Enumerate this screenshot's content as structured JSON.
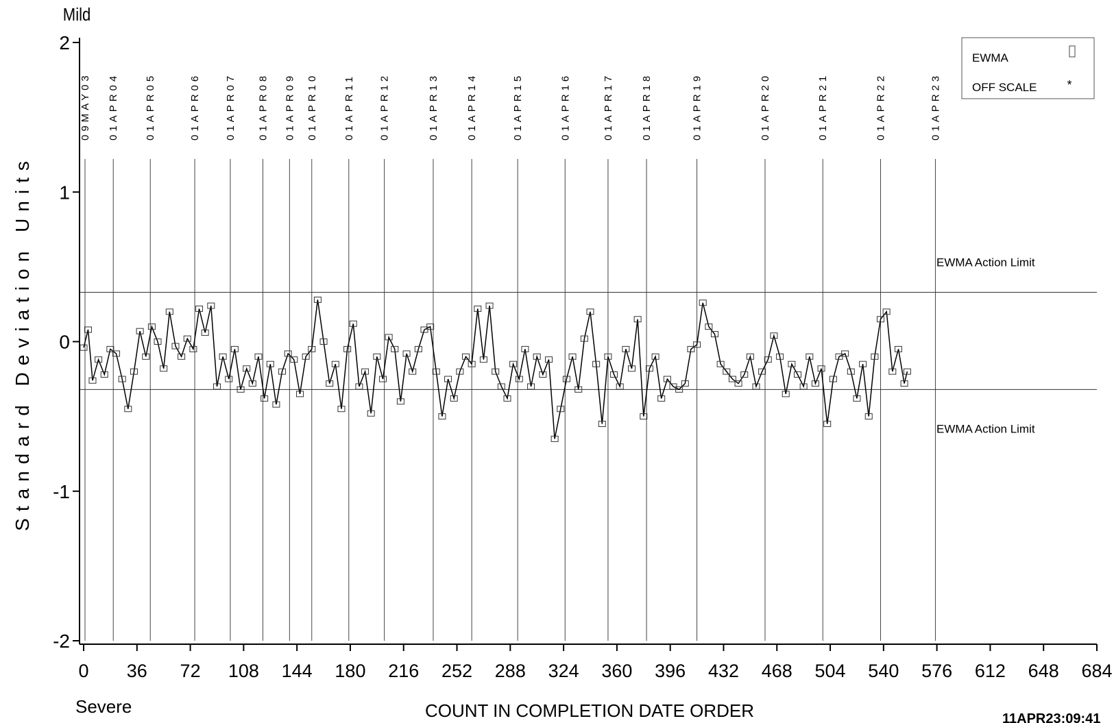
{
  "chart_data": {
    "type": "line",
    "title": "",
    "ylabel": "Standard Deviation Units",
    "xlabel": "COUNT IN COMPLETION DATE ORDER",
    "y_top_label": "Mild",
    "y_bottom_label": "Severe",
    "timestamp": "11APR23:09:41",
    "xlim": [
      0,
      684
    ],
    "ylim": [
      -2,
      2
    ],
    "x_ticks": [
      0,
      36,
      72,
      108,
      144,
      180,
      216,
      252,
      288,
      324,
      360,
      396,
      432,
      468,
      504,
      540,
      576,
      612,
      648,
      684
    ],
    "y_ticks": [
      2,
      1,
      0,
      -1,
      -2
    ],
    "action_limits": {
      "upper": 0.33,
      "lower": -0.32,
      "label": "EWMA Action Limit"
    },
    "legend": {
      "placement": "top-right",
      "items": [
        {
          "label": "EWMA",
          "symbol": "square"
        },
        {
          "label": "OFF SCALE",
          "symbol": "asterisk"
        }
      ]
    },
    "date_markers": [
      {
        "x": 0,
        "label": "09MAY03"
      },
      {
        "x": 20,
        "label": "01APR04"
      },
      {
        "x": 45,
        "label": "01APR05"
      },
      {
        "x": 75,
        "label": "01APR06"
      },
      {
        "x": 99,
        "label": "01APR07"
      },
      {
        "x": 121,
        "label": "01APR08"
      },
      {
        "x": 139,
        "label": "01APR09"
      },
      {
        "x": 154,
        "label": "01APR10"
      },
      {
        "x": 179,
        "label": "01APR11"
      },
      {
        "x": 203,
        "label": "01APR12"
      },
      {
        "x": 236,
        "label": "01APR13"
      },
      {
        "x": 262,
        "label": "01APR14"
      },
      {
        "x": 293,
        "label": "01APR15"
      },
      {
        "x": 325,
        "label": "01APR16"
      },
      {
        "x": 354,
        "label": "01APR17"
      },
      {
        "x": 380,
        "label": "01APR18"
      },
      {
        "x": 414,
        "label": "01APR19"
      },
      {
        "x": 460,
        "label": "01APR20"
      },
      {
        "x": 499,
        "label": "01APR21"
      },
      {
        "x": 538,
        "label": "01APR22"
      },
      {
        "x": 575,
        "label": "01APR23"
      }
    ],
    "series": [
      {
        "name": "EWMA",
        "points": [
          [
            0,
            -0.04
          ],
          [
            3,
            0.08
          ],
          [
            6,
            -0.26
          ],
          [
            10,
            -0.12
          ],
          [
            14,
            -0.22
          ],
          [
            18,
            -0.05
          ],
          [
            22,
            -0.08
          ],
          [
            26,
            -0.25
          ],
          [
            30,
            -0.45
          ],
          [
            34,
            -0.2
          ],
          [
            38,
            0.07
          ],
          [
            42,
            -0.1
          ],
          [
            46,
            0.1
          ],
          [
            50,
            0.0
          ],
          [
            54,
            -0.18
          ],
          [
            58,
            0.2
          ],
          [
            62,
            -0.03
          ],
          [
            66,
            -0.1
          ],
          [
            70,
            0.02
          ],
          [
            74,
            -0.05
          ],
          [
            78,
            0.22
          ],
          [
            82,
            0.06
          ],
          [
            86,
            0.24
          ],
          [
            90,
            -0.3
          ],
          [
            94,
            -0.1
          ],
          [
            98,
            -0.25
          ],
          [
            102,
            -0.05
          ],
          [
            106,
            -0.32
          ],
          [
            110,
            -0.18
          ],
          [
            114,
            -0.28
          ],
          [
            118,
            -0.1
          ],
          [
            122,
            -0.38
          ],
          [
            126,
            -0.15
          ],
          [
            130,
            -0.42
          ],
          [
            134,
            -0.2
          ],
          [
            138,
            -0.08
          ],
          [
            142,
            -0.12
          ],
          [
            146,
            -0.35
          ],
          [
            150,
            -0.1
          ],
          [
            154,
            -0.05
          ],
          [
            158,
            0.28
          ],
          [
            162,
            0.0
          ],
          [
            166,
            -0.28
          ],
          [
            170,
            -0.15
          ],
          [
            174,
            -0.45
          ],
          [
            178,
            -0.05
          ],
          [
            182,
            0.12
          ],
          [
            186,
            -0.3
          ],
          [
            190,
            -0.2
          ],
          [
            194,
            -0.48
          ],
          [
            198,
            -0.1
          ],
          [
            202,
            -0.25
          ],
          [
            206,
            0.03
          ],
          [
            210,
            -0.05
          ],
          [
            214,
            -0.4
          ],
          [
            218,
            -0.08
          ],
          [
            222,
            -0.2
          ],
          [
            226,
            -0.05
          ],
          [
            230,
            0.08
          ],
          [
            234,
            0.1
          ],
          [
            238,
            -0.2
          ],
          [
            242,
            -0.5
          ],
          [
            246,
            -0.25
          ],
          [
            250,
            -0.38
          ],
          [
            254,
            -0.2
          ],
          [
            258,
            -0.1
          ],
          [
            262,
            -0.15
          ],
          [
            266,
            0.22
          ],
          [
            270,
            -0.12
          ],
          [
            274,
            0.24
          ],
          [
            278,
            -0.2
          ],
          [
            282,
            -0.3
          ],
          [
            286,
            -0.38
          ],
          [
            290,
            -0.15
          ],
          [
            294,
            -0.25
          ],
          [
            298,
            -0.05
          ],
          [
            302,
            -0.3
          ],
          [
            306,
            -0.1
          ],
          [
            310,
            -0.22
          ],
          [
            314,
            -0.12
          ],
          [
            318,
            -0.65
          ],
          [
            322,
            -0.45
          ],
          [
            326,
            -0.25
          ],
          [
            330,
            -0.1
          ],
          [
            334,
            -0.32
          ],
          [
            338,
            0.02
          ],
          [
            342,
            0.2
          ],
          [
            346,
            -0.15
          ],
          [
            350,
            -0.55
          ],
          [
            354,
            -0.1
          ],
          [
            358,
            -0.22
          ],
          [
            362,
            -0.3
          ],
          [
            366,
            -0.05
          ],
          [
            370,
            -0.18
          ],
          [
            374,
            0.15
          ],
          [
            378,
            -0.5
          ],
          [
            382,
            -0.18
          ],
          [
            386,
            -0.1
          ],
          [
            390,
            -0.38
          ],
          [
            394,
            -0.25
          ],
          [
            398,
            -0.3
          ],
          [
            402,
            -0.32
          ],
          [
            406,
            -0.28
          ],
          [
            410,
            -0.05
          ],
          [
            414,
            -0.02
          ],
          [
            418,
            0.26
          ],
          [
            422,
            0.1
          ],
          [
            426,
            0.05
          ],
          [
            430,
            -0.15
          ],
          [
            434,
            -0.2
          ],
          [
            438,
            -0.25
          ],
          [
            442,
            -0.28
          ],
          [
            446,
            -0.22
          ],
          [
            450,
            -0.1
          ],
          [
            454,
            -0.3
          ],
          [
            458,
            -0.2
          ],
          [
            462,
            -0.12
          ],
          [
            466,
            0.04
          ],
          [
            470,
            -0.1
          ],
          [
            474,
            -0.35
          ],
          [
            478,
            -0.15
          ],
          [
            482,
            -0.22
          ],
          [
            486,
            -0.3
          ],
          [
            490,
            -0.1
          ],
          [
            494,
            -0.28
          ],
          [
            498,
            -0.18
          ],
          [
            502,
            -0.55
          ],
          [
            506,
            -0.25
          ],
          [
            510,
            -0.1
          ],
          [
            514,
            -0.08
          ],
          [
            518,
            -0.2
          ],
          [
            522,
            -0.38
          ],
          [
            526,
            -0.15
          ],
          [
            530,
            -0.5
          ],
          [
            534,
            -0.1
          ],
          [
            538,
            0.15
          ],
          [
            542,
            0.2
          ],
          [
            546,
            -0.2
          ],
          [
            550,
            -0.05
          ],
          [
            554,
            -0.28
          ],
          [
            556,
            -0.2
          ]
        ]
      }
    ]
  }
}
